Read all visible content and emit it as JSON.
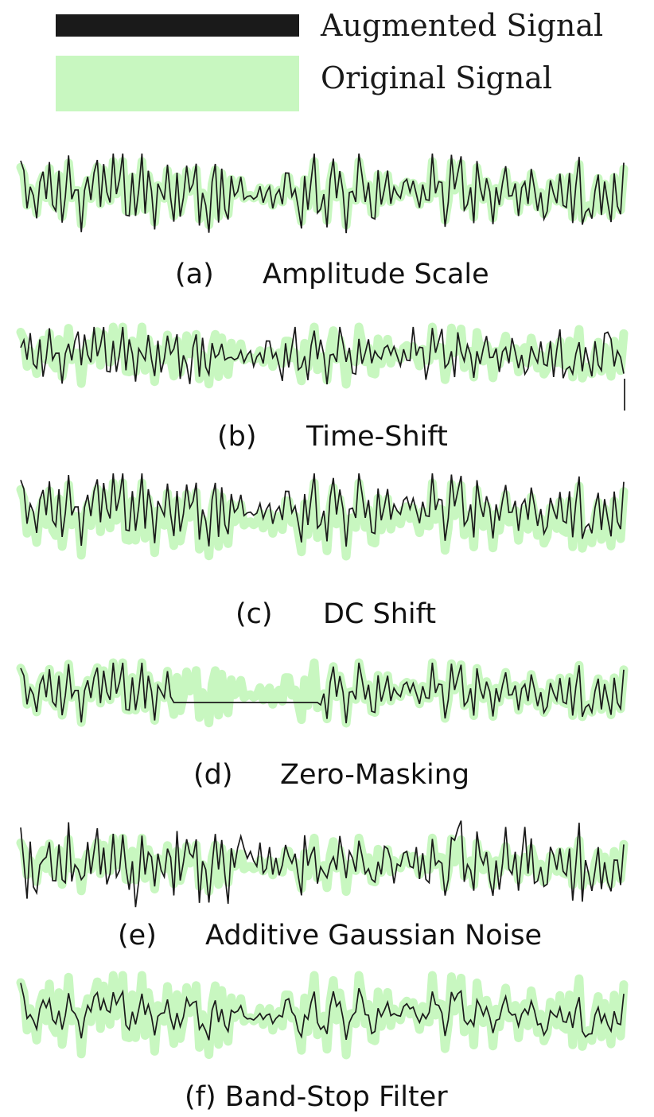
{
  "legend": {
    "augmented_label": "Augmented Signal",
    "original_label": "Original Signal"
  },
  "colors": {
    "augmented": "#1a1a1a",
    "original": "#c8f7c0"
  },
  "panels": [
    {
      "letter": "(a)",
      "name": "Amplitude Scale",
      "type": "amplitude-scale"
    },
    {
      "letter": "(b)",
      "name": "Time-Shift",
      "type": "time-shift"
    },
    {
      "letter": "(c)",
      "name": "DC Shift",
      "type": "dc-shift"
    },
    {
      "letter": "(d)",
      "name": "Zero-Masking",
      "type": "zero-masking"
    },
    {
      "letter": "(e)",
      "name": "Additive Gaussian Noise",
      "type": "gaussian-noise"
    },
    {
      "letter": "(f) Band-Stop Filter",
      "name": "",
      "type": "band-stop"
    }
  ]
}
